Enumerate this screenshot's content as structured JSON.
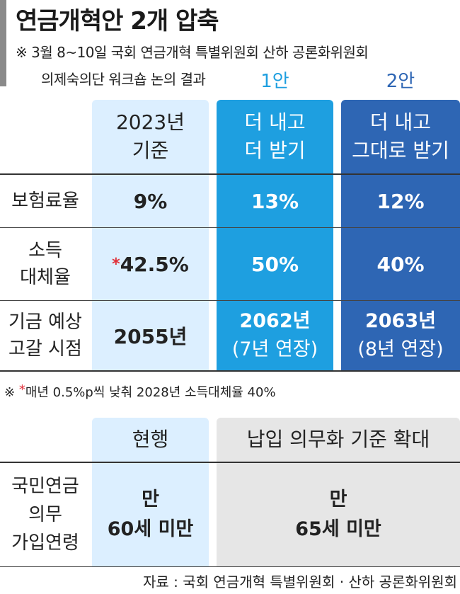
{
  "title": "연금개혁안 2개 압축",
  "subtitle_line1": "※ 3월 8~10일 국회 연금개혁 특별위원회 산하 공론화위원회",
  "subtitle_line2": "의제숙의단 워크숍 논의 결과",
  "plan1_label": "1안",
  "plan2_label": "2안",
  "colors": {
    "plan1": "#1e9fe0",
    "plan2": "#2e66b4",
    "baseline": "#dcefff",
    "expand": "#e6e6e6"
  },
  "table1": {
    "headers": {
      "baseline": [
        "2023년",
        "기준"
      ],
      "plan1": [
        "더 내고",
        "더 받기"
      ],
      "plan2": [
        "더 내고",
        "그대로 받기"
      ]
    },
    "rows": [
      {
        "label": [
          "보험료율"
        ],
        "baseline": "9%",
        "plan1": "13%",
        "plan2": "12%"
      },
      {
        "label": [
          "소득",
          "대체율"
        ],
        "baseline_star": "*",
        "baseline": "42.5%",
        "plan1": "50%",
        "plan2": "40%"
      },
      {
        "label": [
          "기금 예상",
          "고갈 시점"
        ],
        "baseline": "2055년",
        "plan1": [
          "2062년",
          "(7년 연장)"
        ],
        "plan2": [
          "2063년",
          "(8년 연장)"
        ]
      }
    ]
  },
  "note_prefix": "※ ",
  "note_star": "*",
  "note_text": "매년 0.5%p씩 낮춰 2028년 소득대체율 40%",
  "table2": {
    "headers": {
      "current": "현행",
      "expand": "납입 의무화 기준 확대"
    },
    "row": {
      "label": [
        "국민연금",
        "의무",
        "가입연령"
      ],
      "current": [
        "만",
        "60세 미만"
      ],
      "expand": [
        "만",
        "65세 미만"
      ]
    }
  },
  "source": "자료 : 국회 연금개혁 특별위원회 · 산하 공론화위원회"
}
